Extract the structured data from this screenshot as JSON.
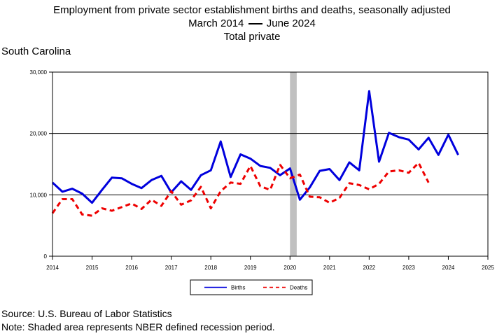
{
  "title_line1": "Employment from private sector establishment births and deaths, seasonally adjusted",
  "title_line2_start": "March 2014",
  "title_line2_end": "June 2024",
  "title_line3": "Total private",
  "region": "South Carolina",
  "source": "Source: U.S. Bureau of Labor Statistics",
  "note": "Note: Shaded area represents NBER defined recession period.",
  "chart_data": {
    "type": "line",
    "title": "Employment from private sector establishment births and deaths, seasonally adjusted",
    "xlim": [
      2014,
      2025
    ],
    "ylim": [
      0,
      30000
    ],
    "y_ticks": [
      0,
      10000,
      20000,
      30000
    ],
    "y_tick_labels": [
      "0",
      "10,000",
      "20,000",
      "30,000"
    ],
    "x_ticks": [
      2014,
      2015,
      2016,
      2017,
      2018,
      2019,
      2020,
      2021,
      2022,
      2023,
      2024,
      2025
    ],
    "x_tick_labels": [
      "2014",
      "2015",
      "2016",
      "2017",
      "2018",
      "2019",
      "2020",
      "2021",
      "2022",
      "2023",
      "2024",
      "2025"
    ],
    "grid": "horizontal",
    "legend_position": "bottom",
    "recession_shading": [
      2020.0,
      2020.17
    ],
    "series": [
      {
        "name": "Births",
        "color": "#0000dd",
        "style": "solid",
        "points": [
          [
            2014.0,
            12000
          ],
          [
            2014.25,
            10500
          ],
          [
            2014.5,
            11000
          ],
          [
            2014.75,
            10200
          ],
          [
            2015.0,
            8700
          ],
          [
            2015.25,
            10800
          ],
          [
            2015.5,
            12800
          ],
          [
            2015.75,
            12700
          ],
          [
            2016.0,
            11800
          ],
          [
            2016.25,
            11100
          ],
          [
            2016.5,
            12400
          ],
          [
            2016.75,
            13100
          ],
          [
            2017.0,
            10400
          ],
          [
            2017.25,
            12200
          ],
          [
            2017.5,
            10800
          ],
          [
            2017.75,
            13200
          ],
          [
            2018.0,
            14000
          ],
          [
            2018.25,
            18700
          ],
          [
            2018.5,
            12900
          ],
          [
            2018.75,
            16600
          ],
          [
            2019.0,
            15900
          ],
          [
            2019.25,
            14700
          ],
          [
            2019.5,
            14400
          ],
          [
            2019.75,
            13200
          ],
          [
            2020.0,
            14300
          ],
          [
            2020.25,
            9200
          ],
          [
            2020.5,
            11200
          ],
          [
            2020.75,
            13900
          ],
          [
            2021.0,
            14200
          ],
          [
            2021.25,
            12400
          ],
          [
            2021.5,
            15300
          ],
          [
            2021.75,
            14000
          ],
          [
            2022.0,
            26900
          ],
          [
            2022.25,
            15400
          ],
          [
            2022.5,
            20100
          ],
          [
            2022.75,
            19400
          ],
          [
            2023.0,
            19000
          ],
          [
            2023.25,
            17400
          ],
          [
            2023.5,
            19300
          ],
          [
            2023.75,
            16500
          ],
          [
            2024.0,
            19800
          ],
          [
            2024.25,
            16500
          ]
        ]
      },
      {
        "name": "Deaths",
        "color": "#ee0000",
        "style": "dashed",
        "points": [
          [
            2014.0,
            7000
          ],
          [
            2014.25,
            9300
          ],
          [
            2014.5,
            9300
          ],
          [
            2014.75,
            6800
          ],
          [
            2015.0,
            6600
          ],
          [
            2015.25,
            7800
          ],
          [
            2015.5,
            7400
          ],
          [
            2015.75,
            8000
          ],
          [
            2016.0,
            8600
          ],
          [
            2016.25,
            7700
          ],
          [
            2016.5,
            9200
          ],
          [
            2016.75,
            8200
          ],
          [
            2017.0,
            10600
          ],
          [
            2017.25,
            8400
          ],
          [
            2017.5,
            9100
          ],
          [
            2017.75,
            11300
          ],
          [
            2018.0,
            7800
          ],
          [
            2018.25,
            10600
          ],
          [
            2018.5,
            12000
          ],
          [
            2018.75,
            11800
          ],
          [
            2019.0,
            14700
          ],
          [
            2019.25,
            11400
          ],
          [
            2019.5,
            10800
          ],
          [
            2019.75,
            14900
          ],
          [
            2020.0,
            12700
          ],
          [
            2020.25,
            13300
          ],
          [
            2020.5,
            9700
          ],
          [
            2020.75,
            9600
          ],
          [
            2021.0,
            8700
          ],
          [
            2021.25,
            9500
          ],
          [
            2021.5,
            11900
          ],
          [
            2021.75,
            11600
          ],
          [
            2022.0,
            10900
          ],
          [
            2022.25,
            11800
          ],
          [
            2022.5,
            13800
          ],
          [
            2022.75,
            14000
          ],
          [
            2023.0,
            13600
          ],
          [
            2023.25,
            15200
          ],
          [
            2023.5,
            12000
          ]
        ]
      }
    ]
  }
}
